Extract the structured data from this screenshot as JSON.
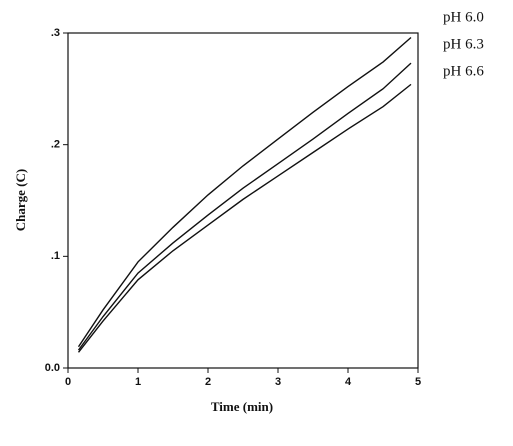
{
  "chart_data": {
    "type": "line",
    "x_label": "Time (min)",
    "y_label": "Charge (C)",
    "x": [
      0.15,
      0.5,
      1,
      1.5,
      2,
      2.5,
      3,
      3.5,
      4,
      4.5,
      4.9
    ],
    "series": [
      {
        "name": "pH 6.0",
        "color": "#111111",
        "values": [
          0.019,
          0.052,
          0.095,
          0.126,
          0.155,
          0.181,
          0.205,
          0.229,
          0.252,
          0.274,
          0.296
        ]
      },
      {
        "name": "pH 6.3",
        "color": "#111111",
        "values": [
          0.016,
          0.046,
          0.085,
          0.112,
          0.137,
          0.161,
          0.183,
          0.205,
          0.228,
          0.25,
          0.273
        ]
      },
      {
        "name": "pH 6.6",
        "color": "#111111",
        "values": [
          0.014,
          0.042,
          0.079,
          0.105,
          0.128,
          0.151,
          0.172,
          0.193,
          0.214,
          0.234,
          0.254
        ]
      }
    ],
    "xlim": [
      0,
      5
    ],
    "xticks": [
      0,
      1,
      2,
      3,
      4,
      5
    ],
    "ylim": [
      0,
      0.3
    ],
    "yticks": [
      {
        "value": 0,
        "label": "0.0"
      },
      {
        "value": 0.1,
        "label": ".1"
      },
      {
        "value": 0.2,
        "label": ".2"
      },
      {
        "value": 0.3,
        "label": ".3"
      }
    ],
    "grid": false,
    "legend": "outside-right"
  }
}
